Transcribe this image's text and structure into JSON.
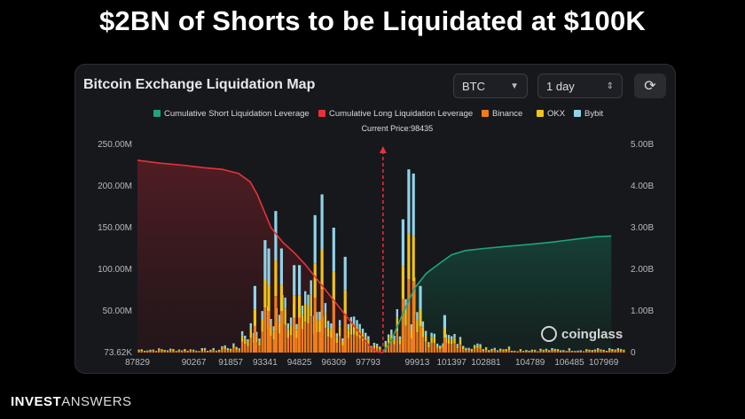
{
  "headline": "$2BN of Shorts to be Liquidated at $100K",
  "card": {
    "title": "Bitcoin Exchange Liquidation Map",
    "symbol": "BTC",
    "range": "1 day",
    "refresh_icon": "refresh-icon"
  },
  "footer": {
    "brand_a": "INVEST",
    "brand_b": "ANSWERS"
  },
  "watermark": "coinglass",
  "colors": {
    "short": "#1fa37e",
    "long": "#e8313a",
    "binance": "#f07c1c",
    "okx": "#f0c419",
    "bybit": "#8fd3e8",
    "price_line": "#e8313a"
  },
  "chart_data": {
    "type": "bar",
    "legend": [
      {
        "name": "Cumulative Short Liquidation Leverage",
        "color": "#1fa37e"
      },
      {
        "name": "Cumulative Long Liquidation Leverage",
        "color": "#e8313a"
      },
      {
        "name": "Binance",
        "color": "#f07c1c"
      },
      {
        "name": "OKX",
        "color": "#f0c419"
      },
      {
        "name": "Bybit",
        "color": "#8fd3e8"
      }
    ],
    "legend_position": "top-center",
    "current_price_label": "Current Price:98435",
    "current_price": 98435,
    "x_ticks": [
      "87829",
      "90267",
      "91857",
      "93341",
      "94825",
      "96309",
      "97793",
      "99913",
      "101397",
      "102881",
      "104789",
      "106485",
      "107969"
    ],
    "x_range": [
      87829,
      108900
    ],
    "y_left_ticks": [
      "73.62K",
      "50.00M",
      "100.00M",
      "150.00M",
      "200.00M",
      "250.00M"
    ],
    "y_left_range": [
      0,
      250
    ],
    "y_left_unit": "M",
    "y_right_ticks": [
      "0",
      "1.00B",
      "2.00B",
      "3.00B",
      "4.00B",
      "5.00B"
    ],
    "y_right_range": [
      0,
      5
    ],
    "y_right_unit": "B",
    "grid": false,
    "long_cumulative_B": [
      [
        87829,
        4.62
      ],
      [
        88800,
        4.55
      ],
      [
        89800,
        4.5
      ],
      [
        90700,
        4.44
      ],
      [
        91500,
        4.4
      ],
      [
        92200,
        4.3
      ],
      [
        92700,
        4.1
      ],
      [
        93000,
        3.8
      ],
      [
        93300,
        3.4
      ],
      [
        93600,
        3.0
      ],
      [
        94100,
        2.65
      ],
      [
        94600,
        2.4
      ],
      [
        95100,
        2.1
      ],
      [
        95600,
        1.75
      ],
      [
        96100,
        1.4
      ],
      [
        96600,
        1.05
      ],
      [
        97100,
        0.7
      ],
      [
        97500,
        0.4
      ],
      [
        97900,
        0.12
      ],
      [
        98150,
        0.02
      ],
      [
        98435,
        0.0
      ]
    ],
    "short_cumulative_B": [
      [
        98435,
        0.0
      ],
      [
        98800,
        0.3
      ],
      [
        99300,
        0.95
      ],
      [
        99800,
        1.55
      ],
      [
        100300,
        1.9
      ],
      [
        100900,
        2.15
      ],
      [
        101400,
        2.35
      ],
      [
        102000,
        2.45
      ],
      [
        102800,
        2.5
      ],
      [
        103800,
        2.55
      ],
      [
        104800,
        2.6
      ],
      [
        105700,
        2.65
      ],
      [
        106700,
        2.72
      ],
      [
        107600,
        2.78
      ],
      [
        108300,
        2.8
      ]
    ],
    "peak_bars_M": [
      {
        "x": 92900,
        "value": 80
      },
      {
        "x": 93341,
        "value": 135
      },
      {
        "x": 93500,
        "value": 125
      },
      {
        "x": 93800,
        "value": 170
      },
      {
        "x": 94050,
        "value": 125
      },
      {
        "x": 94600,
        "value": 105
      },
      {
        "x": 94825,
        "value": 105
      },
      {
        "x": 95500,
        "value": 165
      },
      {
        "x": 95800,
        "value": 190
      },
      {
        "x": 96309,
        "value": 150
      },
      {
        "x": 96800,
        "value": 115
      },
      {
        "x": 99300,
        "value": 160
      },
      {
        "x": 99550,
        "value": 220
      },
      {
        "x": 99750,
        "value": 215
      },
      {
        "x": 100050,
        "value": 80
      },
      {
        "x": 101100,
        "value": 45
      }
    ]
  }
}
